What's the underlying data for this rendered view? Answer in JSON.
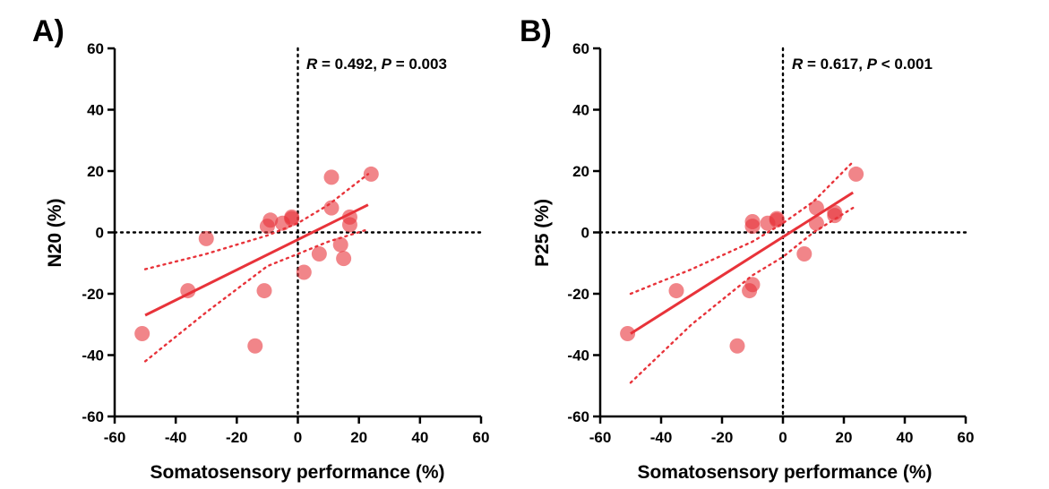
{
  "figure": {
    "panels": [
      {
        "letter": "A)",
        "ylabel": "N20 (%)",
        "xlabel": "Somatosensory performance (%)",
        "stat": {
          "r_symbol": "R",
          "r_value": " = 0.492, ",
          "p_symbol": "P",
          "p_value": " = 0.003"
        }
      },
      {
        "letter": "B)",
        "ylabel": "P25 (%)",
        "xlabel": "Somatosensory performance (%)",
        "stat": {
          "r_symbol": "R",
          "r_value": " = 0.617, ",
          "p_symbol": "P",
          "p_value": " < 0.001"
        }
      }
    ]
  },
  "chart_data": [
    {
      "type": "scatter",
      "xlabel": "Somatosensory performance (%)",
      "ylabel": "N20 (%)",
      "xlim": [
        -60,
        60
      ],
      "ylim": [
        -60,
        60
      ],
      "xticks": [
        -60,
        -40,
        -20,
        0,
        20,
        40,
        60
      ],
      "yticks": [
        -60,
        -40,
        -20,
        0,
        20,
        40,
        60
      ],
      "reference_lines": {
        "x": 0,
        "y": 0,
        "style": "dotted"
      },
      "points": [
        {
          "x": -51,
          "y": -33
        },
        {
          "x": -36,
          "y": -19
        },
        {
          "x": -30,
          "y": -2
        },
        {
          "x": -14,
          "y": -37
        },
        {
          "x": -11,
          "y": -19
        },
        {
          "x": -10,
          "y": 2
        },
        {
          "x": -9,
          "y": 4
        },
        {
          "x": -5,
          "y": 3
        },
        {
          "x": -2,
          "y": 5
        },
        {
          "x": -2,
          "y": 4.5
        },
        {
          "x": 2,
          "y": -13
        },
        {
          "x": 7,
          "y": -7
        },
        {
          "x": 11,
          "y": 18
        },
        {
          "x": 11,
          "y": 8
        },
        {
          "x": 14,
          "y": -4
        },
        {
          "x": 15,
          "y": -8.5
        },
        {
          "x": 17,
          "y": 5
        },
        {
          "x": 17,
          "y": 2.5
        },
        {
          "x": 24,
          "y": 19
        }
      ],
      "regression": {
        "x": [
          -50,
          23
        ],
        "y": [
          -27,
          9
        ]
      },
      "ci_upper": {
        "x": [
          -50,
          -30,
          -10,
          0,
          10,
          23
        ],
        "y": [
          -12,
          -7,
          -1,
          3,
          9,
          19
        ]
      },
      "ci_lower": {
        "x": [
          -50,
          -30,
          -10,
          0,
          10,
          23
        ],
        "y": [
          -42,
          -26,
          -11,
          -7,
          -3,
          1
        ]
      },
      "color": "#e8333a",
      "annotation": "R = 0.492, P = 0.003"
    },
    {
      "type": "scatter",
      "xlabel": "Somatosensory performance (%)",
      "ylabel": "P25 (%)",
      "xlim": [
        -60,
        60
      ],
      "ylim": [
        -60,
        60
      ],
      "xticks": [
        -60,
        -40,
        -20,
        0,
        20,
        40,
        60
      ],
      "yticks": [
        -60,
        -40,
        -20,
        0,
        20,
        40,
        60
      ],
      "reference_lines": {
        "x": 0,
        "y": 0,
        "style": "dotted"
      },
      "points": [
        {
          "x": -51,
          "y": -33
        },
        {
          "x": -35,
          "y": -19
        },
        {
          "x": -15,
          "y": -37
        },
        {
          "x": -11,
          "y": -19
        },
        {
          "x": -10,
          "y": -17
        },
        {
          "x": -10,
          "y": 3.5
        },
        {
          "x": -10,
          "y": 2
        },
        {
          "x": -5,
          "y": 3
        },
        {
          "x": -2,
          "y": 4.5
        },
        {
          "x": -2,
          "y": 4
        },
        {
          "x": 7,
          "y": -7
        },
        {
          "x": 11,
          "y": 8
        },
        {
          "x": 11,
          "y": 3
        },
        {
          "x": 17,
          "y": 6.5
        },
        {
          "x": 17,
          "y": 5.5
        },
        {
          "x": 24,
          "y": 19
        }
      ],
      "regression": {
        "x": [
          -50,
          23
        ],
        "y": [
          -33,
          13
        ]
      },
      "ci_upper": {
        "x": [
          -50,
          -30,
          -10,
          0,
          10,
          23
        ],
        "y": [
          -20,
          -12,
          -3,
          3,
          10,
          23
        ]
      },
      "ci_lower": {
        "x": [
          -50,
          -30,
          -10,
          0,
          10,
          23
        ],
        "y": [
          -49,
          -30,
          -14,
          -8,
          0,
          8
        ]
      },
      "color": "#e8333a",
      "annotation": "R = 0.617, P < 0.001"
    }
  ]
}
